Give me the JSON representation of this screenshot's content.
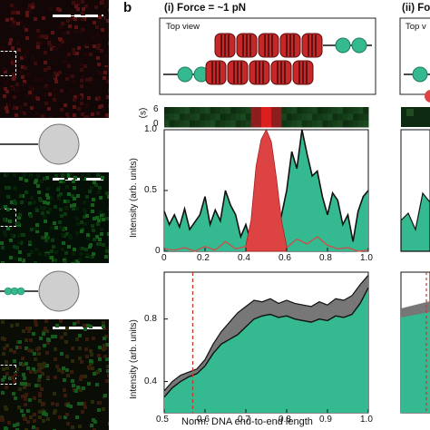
{
  "panel_label": "b",
  "panel_i": {
    "title": "(i) Force = ~1 pN",
    "inset_title": "Top view"
  },
  "panel_ii": {
    "title": "(ii) Fo",
    "inset_title": "Top v"
  },
  "kymo_axis": {
    "label": "(s)",
    "ticks": [
      "6",
      "0"
    ]
  },
  "chart_data": [
    {
      "type": "area",
      "xlabel": "",
      "ylabel": "Intensity (arb. units)",
      "xlim": [
        0,
        1.0
      ],
      "ylim": [
        0,
        1.0
      ],
      "x_ticks": [
        "0",
        "0.2",
        "0.4",
        "0.6",
        "0.8",
        "1.0"
      ],
      "y_ticks": [
        "0",
        "0.5",
        "1.0"
      ],
      "colors": {
        "green": "#35b990",
        "red": "#de4343",
        "black": "#111111"
      },
      "series": [
        {
          "color": "green",
          "x": [
            0,
            0.025,
            0.05,
            0.075,
            0.1,
            0.125,
            0.15,
            0.175,
            0.2,
            0.225,
            0.25,
            0.275,
            0.3,
            0.325,
            0.35,
            0.375,
            0.4,
            0.425,
            0.45,
            0.475,
            0.5,
            0.525,
            0.55,
            0.575,
            0.6,
            0.625,
            0.65,
            0.675,
            0.7,
            0.725,
            0.75,
            0.775,
            0.8,
            0.825,
            0.85,
            0.875,
            0.9,
            0.925,
            0.95,
            0.975,
            1.0
          ],
          "values": [
            0.33,
            0.22,
            0.3,
            0.2,
            0.35,
            0.18,
            0.24,
            0.3,
            0.45,
            0.22,
            0.34,
            0.25,
            0.5,
            0.38,
            0.3,
            0.12,
            0.22,
            0.07,
            0.05,
            0.03,
            0.02,
            0.05,
            0.1,
            0.3,
            0.5,
            0.82,
            0.68,
            1.05,
            0.8,
            0.62,
            0.66,
            0.45,
            0.3,
            0.48,
            0.42,
            0.22,
            0.3,
            0.08,
            0.33,
            0.45,
            0.5
          ]
        },
        {
          "color": "red",
          "x": [
            0.4,
            0.425,
            0.45,
            0.475,
            0.5,
            0.525,
            0.55,
            0.575,
            0.6
          ],
          "values": [
            0.05,
            0.25,
            0.7,
            0.92,
            1.0,
            0.9,
            0.6,
            0.25,
            0.04
          ]
        },
        {
          "color": "red-line",
          "x": [
            0,
            0.05,
            0.1,
            0.15,
            0.2,
            0.25,
            0.3,
            0.35,
            0.4,
            0.6,
            0.65,
            0.7,
            0.75,
            0.8,
            0.85,
            0.9,
            0.95,
            1.0
          ],
          "values": [
            0.02,
            0.01,
            0.03,
            0.0,
            0.04,
            0.01,
            0.08,
            0.02,
            0.04,
            0.03,
            0.1,
            0.06,
            0.12,
            0.05,
            0.02,
            0.03,
            0.0,
            0.01
          ]
        }
      ]
    },
    {
      "type": "area",
      "xlabel": "Norm. DNA end-to-end length",
      "ylabel": "Intensity (arb. units)",
      "xlim": [
        0.5,
        1.0
      ],
      "ylim": [
        0.2,
        1.1
      ],
      "x_ticks": [
        "0.5",
        "0.6",
        "0.7",
        "0.8",
        "0.9",
        "1.0"
      ],
      "y_ticks": [
        "0.4",
        "0.8"
      ],
      "vline_x": 0.57,
      "colors": {
        "green": "#35b990",
        "grey": "#777777",
        "dashed": "#c0392b"
      },
      "series": [
        {
          "color": "green",
          "x": [
            0.5,
            0.52,
            0.54,
            0.56,
            0.58,
            0.6,
            0.62,
            0.64,
            0.66,
            0.68,
            0.7,
            0.72,
            0.74,
            0.76,
            0.78,
            0.8,
            0.82,
            0.84,
            0.86,
            0.88,
            0.9,
            0.92,
            0.94,
            0.96,
            0.98,
            1.0
          ],
          "values": [
            0.3,
            0.36,
            0.4,
            0.43,
            0.45,
            0.5,
            0.58,
            0.64,
            0.67,
            0.7,
            0.75,
            0.8,
            0.82,
            0.83,
            0.81,
            0.82,
            0.8,
            0.79,
            0.78,
            0.8,
            0.79,
            0.82,
            0.81,
            0.83,
            0.9,
            1.0
          ]
        },
        {
          "color": "grey",
          "x": [
            0.5,
            0.52,
            0.54,
            0.56,
            0.58,
            0.6,
            0.62,
            0.64,
            0.66,
            0.68,
            0.7,
            0.72,
            0.74,
            0.76,
            0.78,
            0.8,
            0.82,
            0.84,
            0.86,
            0.88,
            0.9,
            0.92,
            0.94,
            0.96,
            0.98,
            1.0
          ],
          "values": [
            0.34,
            0.4,
            0.44,
            0.46,
            0.48,
            0.54,
            0.64,
            0.72,
            0.78,
            0.84,
            0.88,
            0.92,
            0.91,
            0.93,
            0.9,
            0.92,
            0.9,
            0.89,
            0.88,
            0.91,
            0.89,
            0.93,
            0.92,
            0.95,
            1.02,
            1.08
          ]
        }
      ]
    }
  ]
}
